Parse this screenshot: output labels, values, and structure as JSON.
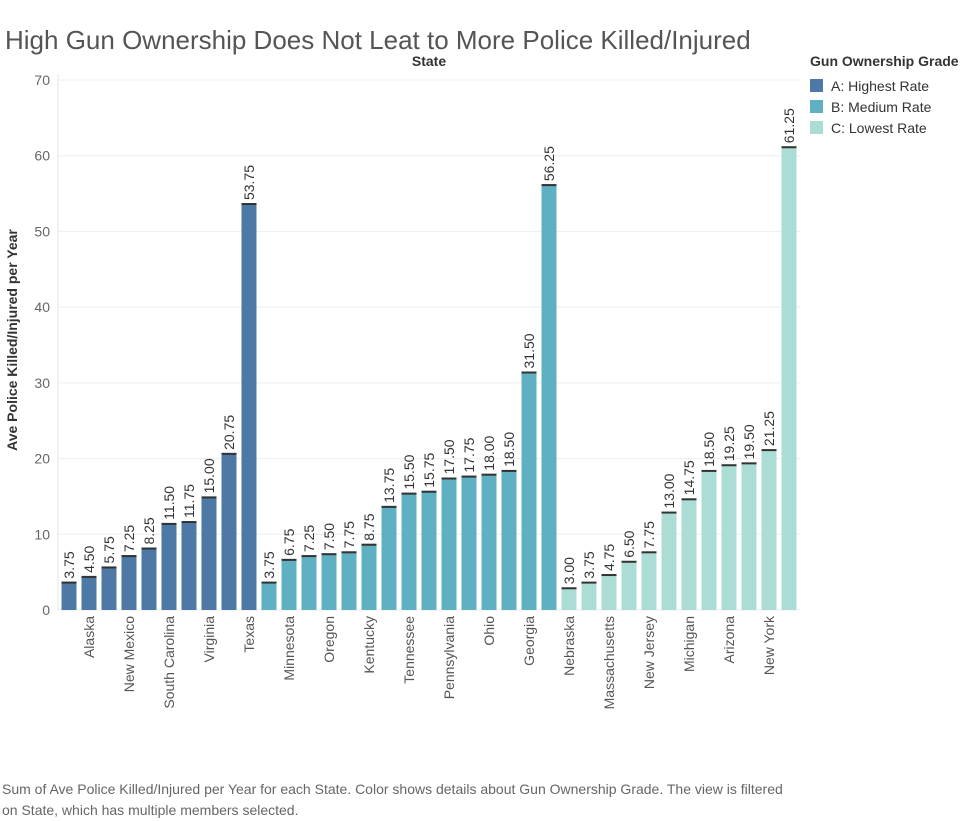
{
  "title": "High Gun Ownership Does Not Leat to More Police Killed/Injured",
  "footer": "Sum of Ave Police Killed/Injured per Year for each State.  Color shows details about Gun Ownership Grade. The view is filtered on State, which has multiple members selected.",
  "legend": {
    "title": "Gun Ownership Grade",
    "items": [
      {
        "label": "A: Highest Rate",
        "color": "#4e79a7"
      },
      {
        "label": "B: Medium Rate",
        "color": "#5fb0c2"
      },
      {
        "label": "C: Lowest Rate",
        "color": "#acdcd6"
      }
    ]
  },
  "chart_data": {
    "type": "bar",
    "title": "High Gun Ownership Does Not Leat to More Police Killed/Injured",
    "column_header": "State",
    "xlabel": "",
    "ylabel": "Ave Police Killed/Injured per Year",
    "ylim": [
      0,
      70
    ],
    "yticks": [
      0,
      10,
      20,
      30,
      40,
      50,
      60,
      70
    ],
    "grid": true,
    "legend_position": "right",
    "bars": [
      {
        "state": "",
        "grade": "A",
        "value": 3.75,
        "label": "3.75"
      },
      {
        "state": "Alaska",
        "grade": "A",
        "value": 4.5,
        "label": "4.50"
      },
      {
        "state": "",
        "grade": "A",
        "value": 5.75,
        "label": "5.75"
      },
      {
        "state": "New Mexico",
        "grade": "A",
        "value": 7.25,
        "label": "7.25"
      },
      {
        "state": "",
        "grade": "A",
        "value": 8.25,
        "label": "8.25"
      },
      {
        "state": "South Carolina",
        "grade": "A",
        "value": 11.5,
        "label": "11.50"
      },
      {
        "state": "",
        "grade": "A",
        "value": 11.75,
        "label": "11.75"
      },
      {
        "state": "Virginia",
        "grade": "A",
        "value": 15.0,
        "label": "15.00"
      },
      {
        "state": "",
        "grade": "A",
        "value": 20.75,
        "label": "20.75"
      },
      {
        "state": "Texas",
        "grade": "A",
        "value": 53.75,
        "label": "53.75"
      },
      {
        "state": "",
        "grade": "B",
        "value": 3.75,
        "label": "3.75"
      },
      {
        "state": "Minnesota",
        "grade": "B",
        "value": 6.75,
        "label": "6.75"
      },
      {
        "state": "",
        "grade": "B",
        "value": 7.25,
        "label": "7.25"
      },
      {
        "state": "Oregon",
        "grade": "B",
        "value": 7.5,
        "label": "7.50"
      },
      {
        "state": "",
        "grade": "B",
        "value": 7.75,
        "label": "7.75"
      },
      {
        "state": "Kentucky",
        "grade": "B",
        "value": 8.75,
        "label": "8.75"
      },
      {
        "state": "",
        "grade": "B",
        "value": 13.75,
        "label": "13.75"
      },
      {
        "state": "Tennessee",
        "grade": "B",
        "value": 15.5,
        "label": "15.50"
      },
      {
        "state": "",
        "grade": "B",
        "value": 15.75,
        "label": "15.75"
      },
      {
        "state": "Pennsylvania",
        "grade": "B",
        "value": 17.5,
        "label": "17.50"
      },
      {
        "state": "",
        "grade": "B",
        "value": 17.75,
        "label": "17.75"
      },
      {
        "state": "Ohio",
        "grade": "B",
        "value": 18.0,
        "label": "18.00"
      },
      {
        "state": "",
        "grade": "B",
        "value": 18.5,
        "label": "18.50"
      },
      {
        "state": "Georgia",
        "grade": "B",
        "value": 31.5,
        "label": "31.50"
      },
      {
        "state": "",
        "grade": "B",
        "value": 56.25,
        "label": "56.25"
      },
      {
        "state": "Nebraska",
        "grade": "C",
        "value": 3.0,
        "label": "3.00"
      },
      {
        "state": "",
        "grade": "C",
        "value": 3.75,
        "label": "3.75"
      },
      {
        "state": "Massachusetts",
        "grade": "C",
        "value": 4.75,
        "label": "4.75"
      },
      {
        "state": "",
        "grade": "C",
        "value": 6.5,
        "label": "6.50"
      },
      {
        "state": "New Jersey",
        "grade": "C",
        "value": 7.75,
        "label": "7.75"
      },
      {
        "state": "",
        "grade": "C",
        "value": 13.0,
        "label": "13.00"
      },
      {
        "state": "Michigan",
        "grade": "C",
        "value": 14.75,
        "label": "14.75"
      },
      {
        "state": "",
        "grade": "C",
        "value": 18.5,
        "label": "18.50"
      },
      {
        "state": "Arizona",
        "grade": "C",
        "value": 19.25,
        "label": "19.25"
      },
      {
        "state": "",
        "grade": "C",
        "value": 19.5,
        "label": "19.50"
      },
      {
        "state": "New York",
        "grade": "C",
        "value": 21.25,
        "label": "21.25"
      },
      {
        "state": "",
        "grade": "C",
        "value": 61.25,
        "label": "61.25"
      }
    ],
    "grade_colors": {
      "A": "#4e79a7",
      "B": "#5fb0c2",
      "C": "#acdcd6"
    }
  }
}
